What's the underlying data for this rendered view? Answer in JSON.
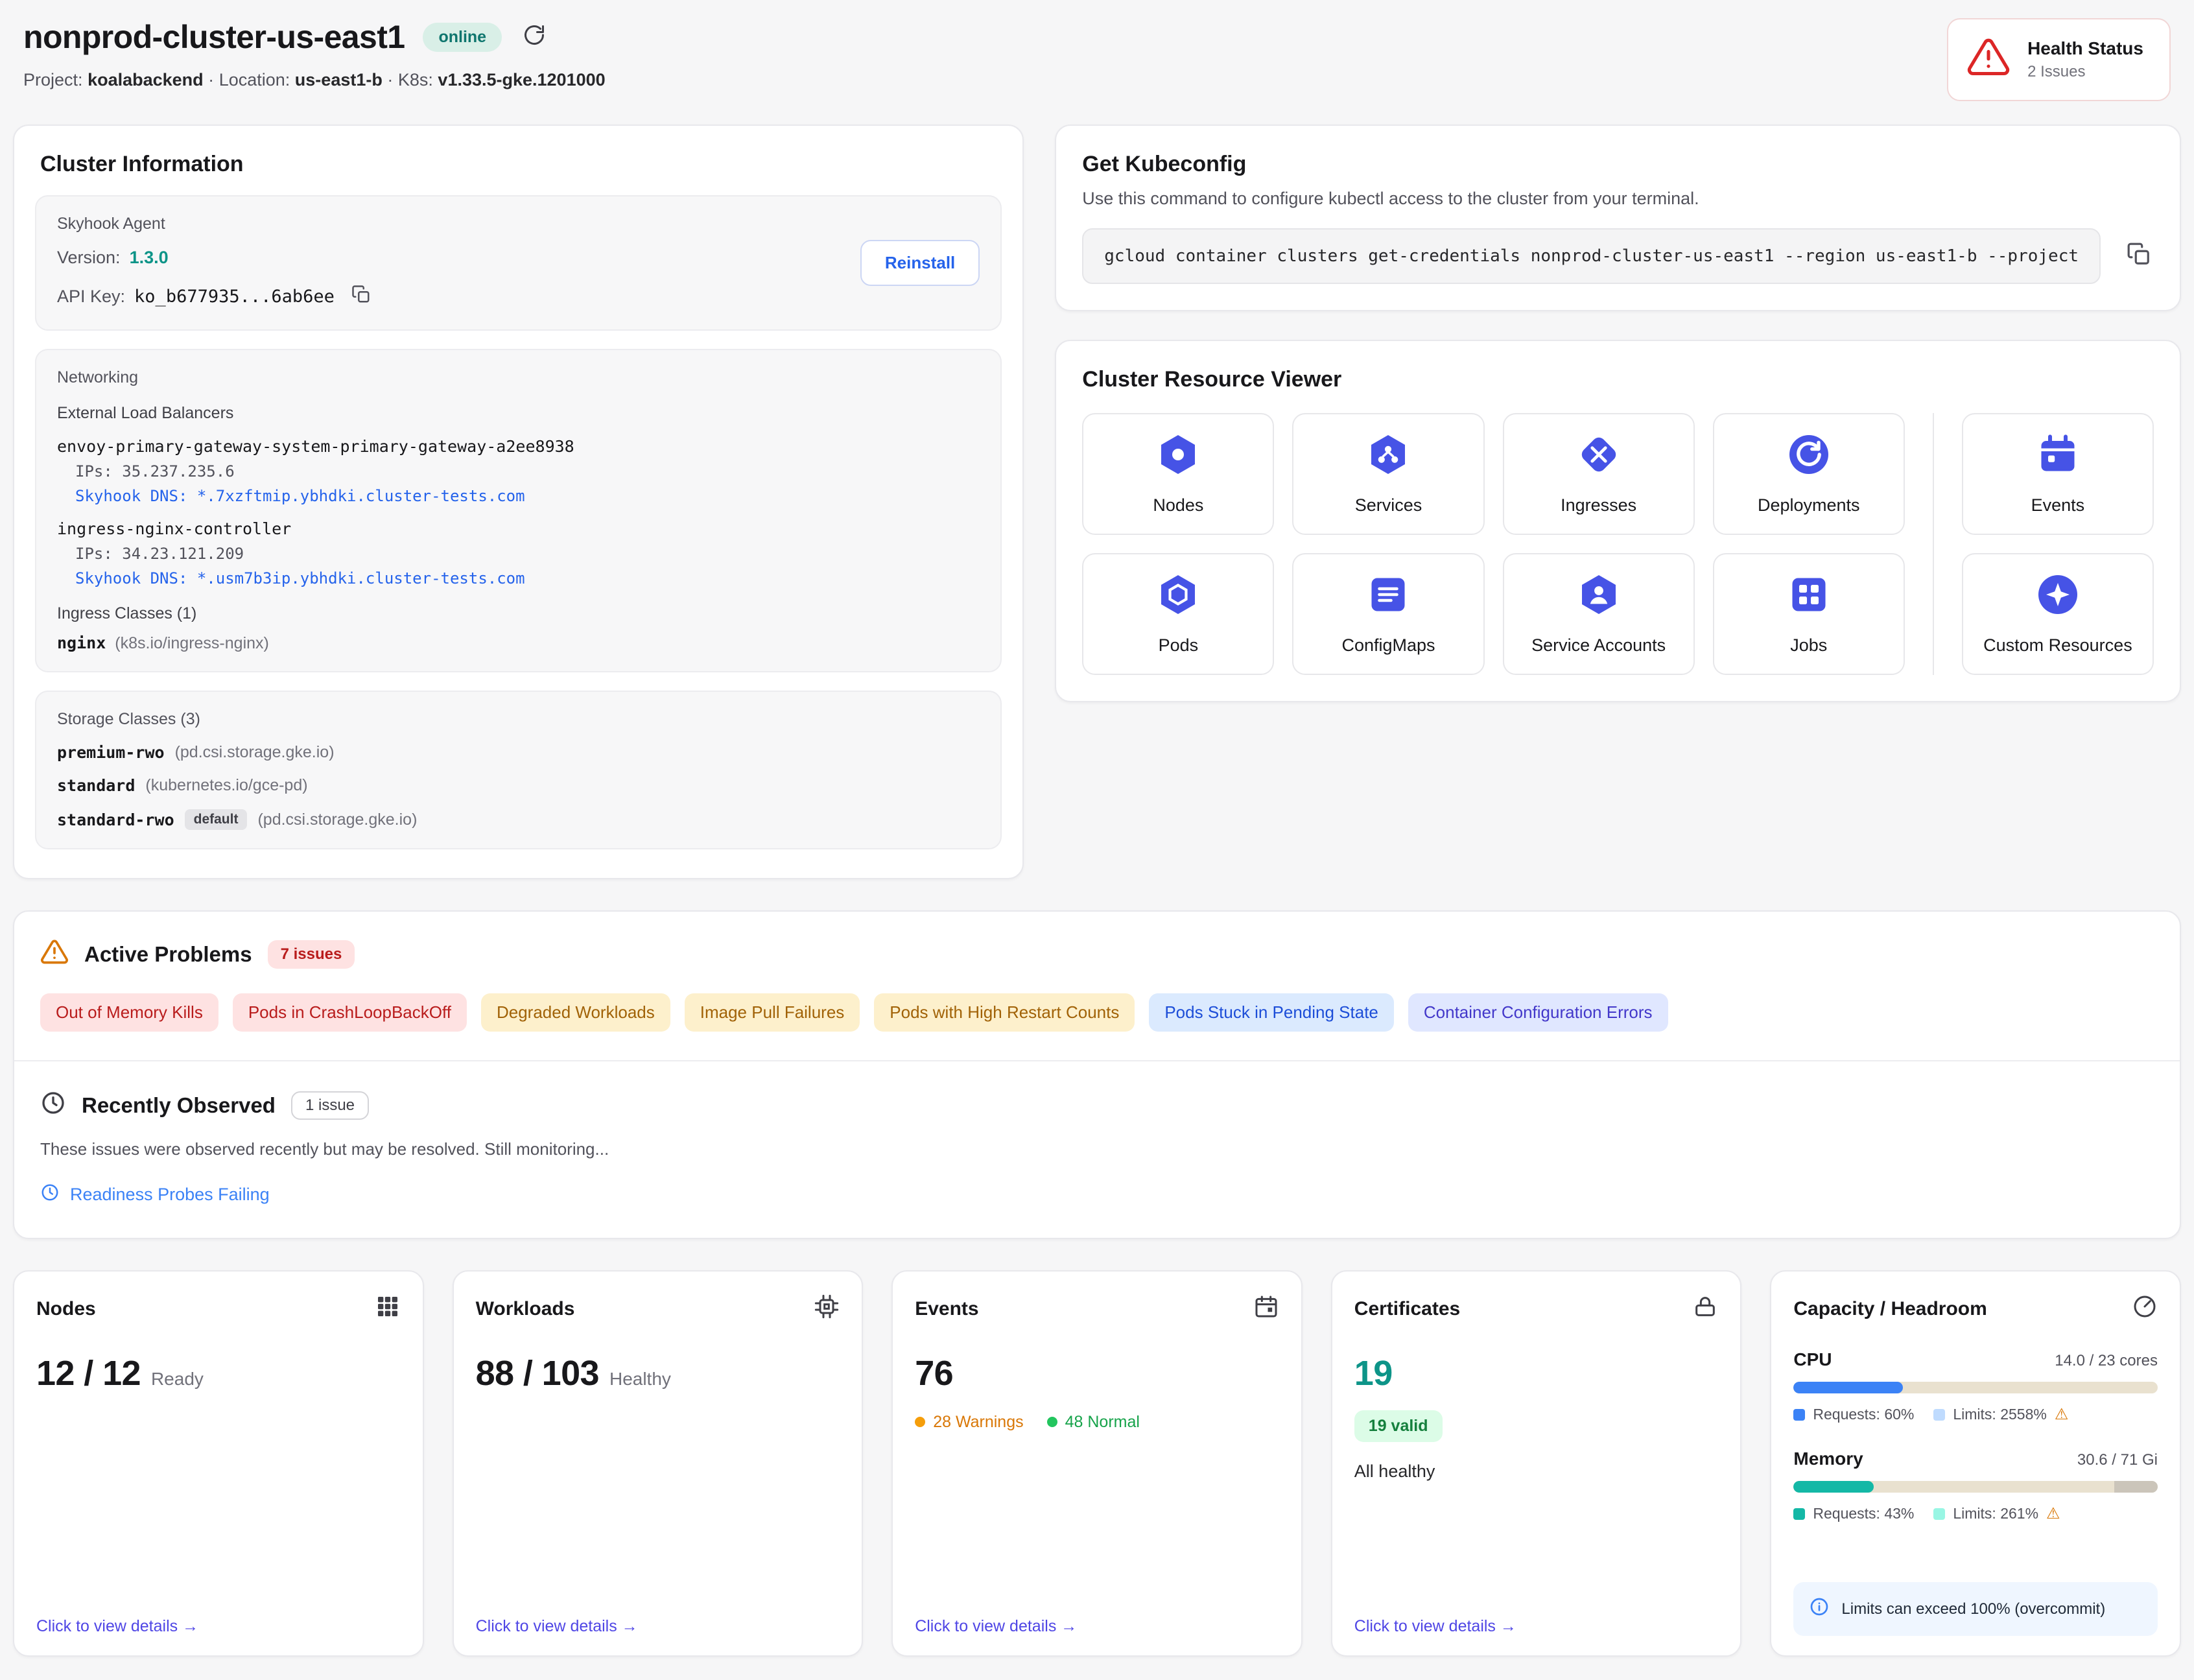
{
  "colors": {
    "accent_blue": "#4653e6",
    "teal": "#0d9488",
    "indigo_link": "#4f46e5",
    "critical_bg": "#fee2e2",
    "critical_text": "#b91c1c",
    "warning_bg": "#fdf0cc",
    "warning_text": "#a16207",
    "info_bg": "#dbeafe",
    "info_text": "#1d4ed8",
    "cpu_bar": "#3b82f6",
    "memory_bar": "#14b8a6",
    "bar_track": "#e9e1cf"
  },
  "header": {
    "title": "nonprod-cluster-us-east1",
    "status_badge": "online",
    "meta": {
      "project_label": "Project:",
      "project_value": "koalabackend",
      "sep": "·",
      "location_label": "Location:",
      "location_value": "us-east1-b",
      "k8s_label": "K8s:",
      "k8s_value": "v1.33.5-gke.1201000"
    },
    "health": {
      "title": "Health Status",
      "subtitle": "2 Issues"
    }
  },
  "cluster_info": {
    "title": "Cluster Information",
    "agent": {
      "section_label": "Skyhook Agent",
      "version_label": "Version:",
      "version_value": "1.3.0",
      "api_key_label": "API Key:",
      "api_key_value": "ko_b677935...6ab6ee",
      "reinstall_label": "Reinstall"
    },
    "networking": {
      "section_label": "Networking",
      "elb_label": "External Load Balancers",
      "load_balancers": [
        {
          "name": "envoy-primary-gateway-system-primary-gateway-a2ee8938",
          "ips_label": "IPs:",
          "ips_value": "35.237.235.6",
          "dns_label": "Skyhook DNS:",
          "dns_value": "*.7xzftmip.ybhdki.cluster-tests.com"
        },
        {
          "name": "ingress-nginx-controller",
          "ips_label": "IPs:",
          "ips_value": "34.23.121.209",
          "dns_label": "Skyhook DNS:",
          "dns_value": "*.usm7b3ip.ybhdki.cluster-tests.com"
        }
      ],
      "ingress_classes_label": "Ingress Classes (1)",
      "ingress_class_name": "nginx",
      "ingress_class_detail": "(k8s.io/ingress-nginx)"
    },
    "storage": {
      "section_label": "Storage Classes (3)",
      "classes": [
        {
          "name": "premium-rwo",
          "provisioner": "(pd.csi.storage.gke.io)"
        },
        {
          "name": "standard",
          "provisioner": "(kubernetes.io/gce-pd)"
        },
        {
          "name": "standard-rwo",
          "default_badge": "default",
          "provisioner": "(pd.csi.storage.gke.io)"
        }
      ]
    }
  },
  "kubeconfig": {
    "title": "Get Kubeconfig",
    "description": "Use this command to configure kubectl access to the cluster from your terminal.",
    "command": "gcloud container clusters get-credentials nonprod-cluster-us-east1 --region us-east1-b --project"
  },
  "resource_viewer": {
    "title": "Cluster Resource Viewer",
    "items": [
      {
        "label": "Nodes",
        "icon": "nodes-icon"
      },
      {
        "label": "Services",
        "icon": "services-icon"
      },
      {
        "label": "Ingresses",
        "icon": "ingresses-icon"
      },
      {
        "label": "Deployments",
        "icon": "deployments-icon"
      },
      {
        "label": "Events",
        "icon": "events-icon"
      },
      {
        "label": "Pods",
        "icon": "pods-icon"
      },
      {
        "label": "ConfigMaps",
        "icon": "configmaps-icon"
      },
      {
        "label": "Service Accounts",
        "icon": "service-accounts-icon"
      },
      {
        "label": "Jobs",
        "icon": "jobs-icon"
      },
      {
        "label": "Custom Resources",
        "icon": "custom-resources-icon"
      }
    ]
  },
  "problems": {
    "title": "Active Problems",
    "count_badge": "7 issues",
    "tags": [
      {
        "label": "Out of Memory Kills",
        "severity": "critical"
      },
      {
        "label": "Pods in CrashLoopBackOff",
        "severity": "critical"
      },
      {
        "label": "Degraded Workloads",
        "severity": "warning"
      },
      {
        "label": "Image Pull Failures",
        "severity": "warning"
      },
      {
        "label": "Pods with High Restart Counts",
        "severity": "warning"
      },
      {
        "label": "Pods Stuck in Pending State",
        "severity": "info"
      },
      {
        "label": "Container Configuration Errors",
        "severity": "info-alt"
      }
    ]
  },
  "recent": {
    "title": "Recently Observed",
    "count_badge": "1 issue",
    "description": "These issues were observed recently but may be resolved. Still monitoring...",
    "items": [
      {
        "label": "Readiness Probes Failing"
      }
    ]
  },
  "stats": {
    "details_link": "Click to view details →",
    "nodes": {
      "title": "Nodes",
      "value": "12 / 12",
      "suffix": "Ready"
    },
    "workloads": {
      "title": "Workloads",
      "value": "88 / 103",
      "suffix": "Healthy"
    },
    "events": {
      "title": "Events",
      "value": "76",
      "warnings": "28 Warnings",
      "normal": "48 Normal"
    },
    "certificates": {
      "title": "Certificates",
      "value": "19",
      "valid_badge": "19 valid",
      "status": "All healthy"
    },
    "capacity": {
      "title": "Capacity / Headroom",
      "cpu": {
        "label": "CPU",
        "usage": "14.0 / 23 cores",
        "requests_label": "Requests: 60%",
        "limits_label": "Limits: 2558%",
        "requests_fill_pct": 30,
        "warning_glyph": "⚠"
      },
      "memory": {
        "label": "Memory",
        "usage": "30.6 / 71 Gi",
        "requests_label": "Requests: 43%",
        "limits_label": "Limits: 261%",
        "requests_fill_pct": 22,
        "warning_glyph": "⚠"
      },
      "note": "Limits can exceed 100% (overcommit)"
    }
  }
}
